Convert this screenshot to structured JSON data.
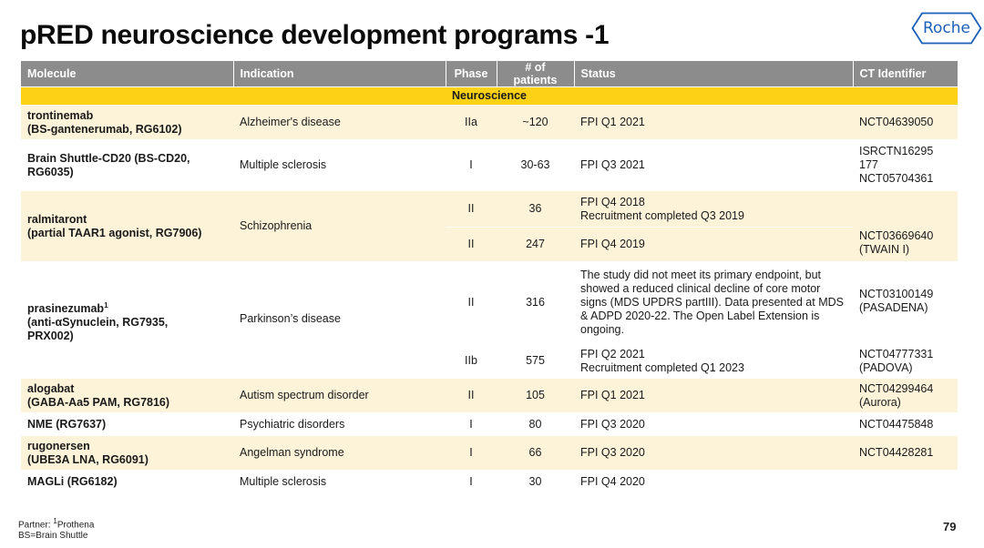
{
  "title": "pRED neuroscience development programs -1",
  "logo": {
    "text": "Roche",
    "color": "#1c5fb8"
  },
  "table": {
    "headers": {
      "molecule": "Molecule",
      "indication": "Indication",
      "phase": "Phase",
      "patients": "# of patients",
      "status": "Status",
      "ct": "CT Identifier"
    },
    "section": "Neuroscience",
    "rows": [
      {
        "molecule_line1": "trontinemab",
        "molecule_line2": "(BS-gantenerumab, RG6102)",
        "indication": "Alzheimer's disease",
        "phase": "IIa",
        "patients": "~120",
        "status": "FPI Q1 2021",
        "ct": "NCT04639050"
      },
      {
        "molecule_line1": "Brain Shuttle-CD20 (BS-CD20,",
        "molecule_line2": "RG6035)",
        "indication": "Multiple sclerosis",
        "phase": "I",
        "patients": "30-63",
        "status": "FPI Q3 2021",
        "ct_line1": "ISRCTN16295",
        "ct_line2": "177",
        "ct_line3": "NCT05704361"
      },
      {
        "molecule_line1": "ralmitaront",
        "molecule_line2": "(partial TAAR1 agonist, RG7906)",
        "indication": "Schizophrenia",
        "phase_a": "II",
        "patients_a": "36",
        "status_a_line1": "FPI Q4 2018",
        "status_a_line2": "Recruitment completed Q3 2019",
        "phase_b": "II",
        "patients_b": "247",
        "status_b": "FPI Q4 2019",
        "ct_b_line1": "NCT03669640",
        "ct_b_line2": "(TWAIN I)"
      },
      {
        "molecule_line1": "prasinezumab",
        "molecule_sup": "1",
        "molecule_line2": "(anti-αSynuclein, RG7935,",
        "molecule_line3": "PRX002)",
        "indication": "Parkinson’s disease",
        "phase_a": "II",
        "patients_a": "316",
        "status_a": "The study did not meet its primary endpoint, but showed a reduced clinical decline of core motor signs (MDS UPDRS partIII). Data presented at MDS & ADPD 2020-22. The Open Label Extension is ongoing.",
        "ct_a_line1": "NCT03100149",
        "ct_a_line2": "(PASADENA)",
        "phase_b": "IIb",
        "patients_b": "575",
        "status_b_line1": "FPI Q2 2021",
        "status_b_line2": "Recruitment completed Q1 2023",
        "ct_b_line1": "NCT04777331",
        "ct_b_line2": "(PADOVA)"
      },
      {
        "molecule_line1": "alogabat",
        "molecule_line2": "(GABA-Aa5 PAM, RG7816)",
        "indication": "Autism spectrum disorder",
        "phase": "II",
        "patients": "105",
        "status": "FPI Q1 2021",
        "ct_line1": "NCT04299464",
        "ct_line2": "(Aurora)"
      },
      {
        "molecule_line1": "NME (RG7637)",
        "indication": "Psychiatric disorders",
        "phase": "I",
        "patients": "80",
        "status": "FPI Q3 2020",
        "ct": "NCT04475848"
      },
      {
        "molecule_line1": "rugonersen",
        "molecule_line2": "(UBE3A LNA, RG6091)",
        "indication": "Angelman syndrome",
        "phase": "I",
        "patients": "66",
        "status": "FPI Q3 2020",
        "ct": "NCT04428281"
      },
      {
        "molecule_line1": "MAGLi (RG6182)",
        "indication": "Multiple sclerosis",
        "phase": "I",
        "patients": "30",
        "status": "FPI Q4 2020",
        "ct": ""
      }
    ]
  },
  "footer": {
    "line1_prefix": "Partner: ",
    "line1_sup": "1",
    "line1_text": "Prothena",
    "line2": "BS=Brain Shuttle"
  },
  "page_number": "79",
  "colors": {
    "header_bg": "#8c8c8c",
    "section_bg": "#fcd116",
    "shade_bg": "#fcf3d9"
  }
}
